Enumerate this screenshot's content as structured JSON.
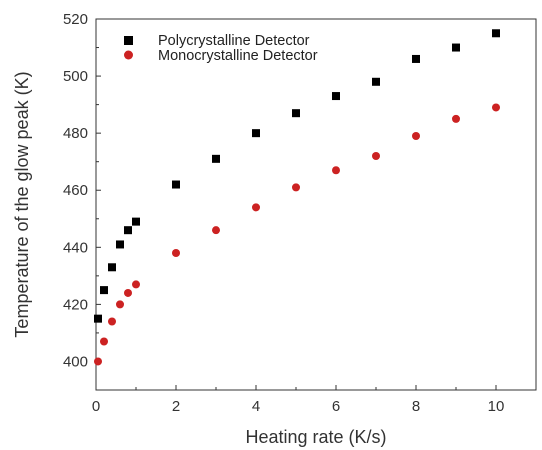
{
  "chart_data": {
    "type": "scatter",
    "title": "",
    "xlabel": "Heating rate (K/s)",
    "ylabel": "Temperature of the glow peak (K)",
    "xlim": [
      0,
      11
    ],
    "ylim": [
      390,
      520
    ],
    "xticks": [
      0,
      2,
      4,
      6,
      8,
      10
    ],
    "yticks": [
      400,
      420,
      440,
      460,
      480,
      500,
      520
    ],
    "grid": false,
    "legend_position": "top-left",
    "series": [
      {
        "name": "Polycrystalline Detector",
        "marker": "square",
        "color": "#000000",
        "x": [
          0.05,
          0.2,
          0.4,
          0.6,
          0.8,
          1,
          2,
          3,
          4,
          5,
          6,
          7,
          8,
          9,
          10
        ],
        "y": [
          415,
          425,
          433,
          441,
          446,
          449,
          462,
          471,
          480,
          487,
          493,
          498,
          506,
          510,
          515
        ]
      },
      {
        "name": "Monocrystalline Detector",
        "marker": "circle",
        "color": "#cc2222",
        "x": [
          0.05,
          0.2,
          0.4,
          0.6,
          0.8,
          1,
          2,
          3,
          4,
          5,
          6,
          7,
          8,
          9,
          10
        ],
        "y": [
          400,
          407,
          414,
          420,
          424,
          427,
          438,
          446,
          454,
          461,
          467,
          472,
          479,
          485,
          489
        ]
      }
    ]
  }
}
